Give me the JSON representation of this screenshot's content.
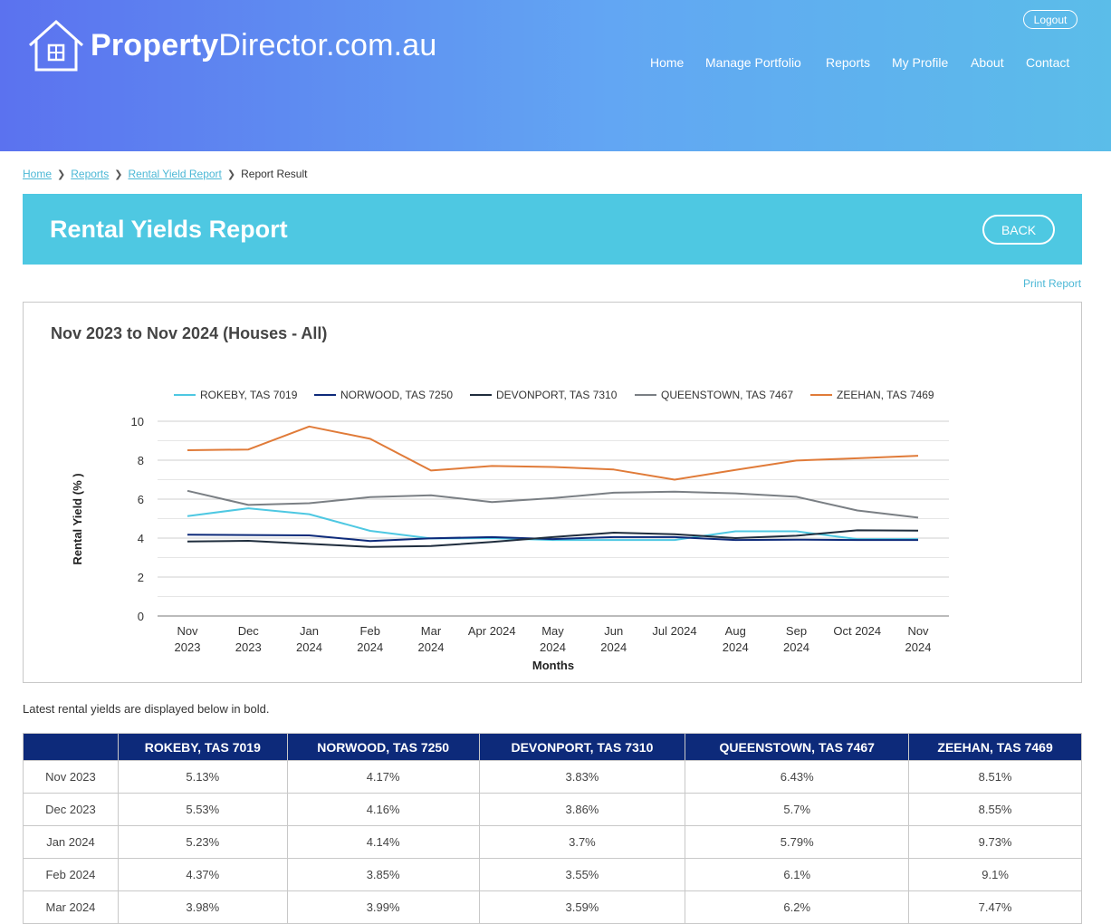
{
  "brand": {
    "bold": "Property",
    "rest": "Director.com.au"
  },
  "header": {
    "logout": "Logout",
    "nav": [
      "Home",
      "Manage Portfolio",
      "Reports",
      "My Profile",
      "About",
      "Contact"
    ]
  },
  "breadcrumb": {
    "items": [
      "Home",
      "Reports",
      "Rental Yield Report"
    ],
    "current": "Report Result"
  },
  "banner": {
    "title": "Rental Yields Report",
    "back": "BACK"
  },
  "print_label": "Print Report",
  "chart_data": {
    "type": "line",
    "title": "Nov 2023 to Nov 2024 (Houses - All)",
    "xlabel": "Months",
    "ylabel": "Rental Yield (% )",
    "ylim": [
      0,
      10
    ],
    "yticks": [
      0,
      2,
      4,
      6,
      8,
      10
    ],
    "legend_position": "top",
    "categories": [
      [
        "Nov",
        "2023"
      ],
      [
        "Dec",
        "2023"
      ],
      [
        "Jan",
        "2024"
      ],
      [
        "Feb",
        "2024"
      ],
      [
        "Mar",
        "2024"
      ],
      [
        "Apr 2024"
      ],
      [
        "May",
        "2024"
      ],
      [
        "Jun",
        "2024"
      ],
      [
        "Jul 2024"
      ],
      [
        "Aug",
        "2024"
      ],
      [
        "Sep",
        "2024"
      ],
      [
        "Oct 2024"
      ],
      [
        "Nov",
        "2024"
      ]
    ],
    "series": [
      {
        "name": "ROKEBY, TAS 7019",
        "color": "#4ec8e2",
        "values": [
          5.13,
          5.53,
          5.23,
          4.37,
          3.98,
          4.0,
          3.9,
          3.9,
          3.9,
          4.35,
          4.35,
          3.95,
          3.95
        ]
      },
      {
        "name": "NORWOOD, TAS 7250",
        "color": "#0d2a7a",
        "values": [
          4.17,
          4.16,
          4.14,
          3.85,
          3.99,
          4.05,
          3.95,
          4.05,
          4.05,
          3.9,
          3.92,
          3.9,
          3.9
        ]
      },
      {
        "name": "DEVONPORT, TAS 7310",
        "color": "#1f2d3d",
        "values": [
          3.83,
          3.86,
          3.7,
          3.55,
          3.59,
          3.8,
          4.05,
          4.28,
          4.2,
          4.0,
          4.12,
          4.4,
          4.38
        ]
      },
      {
        "name": "QUEENSTOWN, TAS 7467",
        "color": "#7a7f84",
        "values": [
          6.43,
          5.7,
          5.79,
          6.1,
          6.2,
          5.85,
          6.05,
          6.33,
          6.38,
          6.3,
          6.12,
          5.42,
          5.05
        ]
      },
      {
        "name": "ZEEHAN, TAS 7469",
        "color": "#e07b39",
        "values": [
          8.51,
          8.55,
          9.73,
          9.1,
          7.47,
          7.7,
          7.65,
          7.52,
          7.0,
          7.5,
          7.98,
          8.1,
          8.23
        ]
      }
    ]
  },
  "note": "Latest rental yields are displayed below in bold.",
  "table": {
    "headers": [
      "",
      "ROKEBY, TAS 7019",
      "NORWOOD, TAS 7250",
      "DEVONPORT, TAS 7310",
      "QUEENSTOWN, TAS 7467",
      "ZEEHAN, TAS 7469"
    ],
    "rows": [
      [
        "Nov 2023",
        "5.13%",
        "4.17%",
        "3.83%",
        "6.43%",
        "8.51%"
      ],
      [
        "Dec 2023",
        "5.53%",
        "4.16%",
        "3.86%",
        "5.7%",
        "8.55%"
      ],
      [
        "Jan 2024",
        "5.23%",
        "4.14%",
        "3.7%",
        "5.79%",
        "9.73%"
      ],
      [
        "Feb 2024",
        "4.37%",
        "3.85%",
        "3.55%",
        "6.1%",
        "9.1%"
      ],
      [
        "Mar 2024",
        "3.98%",
        "3.99%",
        "3.59%",
        "6.2%",
        "7.47%"
      ]
    ]
  }
}
